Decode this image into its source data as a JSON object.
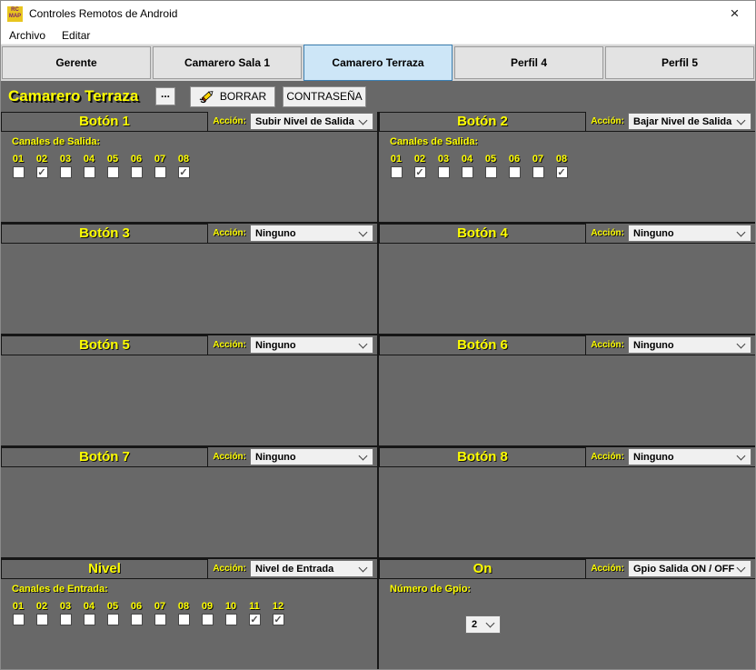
{
  "window": {
    "title": "Controles Remotos de Android",
    "icon_line1": "RC",
    "icon_line2": "MAP",
    "close_glyph": "×"
  },
  "menubar": {
    "items": [
      {
        "label": "Archivo"
      },
      {
        "label": "Editar"
      }
    ]
  },
  "tabs": [
    {
      "label": "Gerente",
      "selected": false
    },
    {
      "label": "Camarero Sala 1",
      "selected": false
    },
    {
      "label": "Camarero Terraza",
      "selected": true
    },
    {
      "label": "Perfil 4",
      "selected": false
    },
    {
      "label": "Perfil 5",
      "selected": false
    }
  ],
  "toolbar": {
    "profile_name": "Camarero Terraza",
    "more_button": "...",
    "delete_button": "BORRAR",
    "password_button": "CONTRASEÑA"
  },
  "labels": {
    "action": "Acción:"
  },
  "panels": [
    {
      "title": "Botón 1",
      "action": "Subir Nivel de Salida",
      "channels_label": "Canales de Salida:",
      "channels": [
        {
          "label": "01",
          "checked": false
        },
        {
          "label": "02",
          "checked": true
        },
        {
          "label": "03",
          "checked": false
        },
        {
          "label": "04",
          "checked": false
        },
        {
          "label": "05",
          "checked": false
        },
        {
          "label": "06",
          "checked": false
        },
        {
          "label": "07",
          "checked": false
        },
        {
          "label": "08",
          "checked": true
        }
      ]
    },
    {
      "title": "Botón 2",
      "action": "Bajar Nivel de Salida",
      "channels_label": "Canales de Salida:",
      "channels": [
        {
          "label": "01",
          "checked": false
        },
        {
          "label": "02",
          "checked": true
        },
        {
          "label": "03",
          "checked": false
        },
        {
          "label": "04",
          "checked": false
        },
        {
          "label": "05",
          "checked": false
        },
        {
          "label": "06",
          "checked": false
        },
        {
          "label": "07",
          "checked": false
        },
        {
          "label": "08",
          "checked": true
        }
      ]
    },
    {
      "title": "Botón 3",
      "action": "Ninguno"
    },
    {
      "title": "Botón 4",
      "action": "Ninguno"
    },
    {
      "title": "Botón 5",
      "action": "Ninguno"
    },
    {
      "title": "Botón 6",
      "action": "Ninguno"
    },
    {
      "title": "Botón 7",
      "action": "Ninguno"
    },
    {
      "title": "Botón 8",
      "action": "Ninguno"
    },
    {
      "title": "Nivel",
      "action": "Nivel de Entrada",
      "channels_label": "Canales de Entrada:",
      "channels": [
        {
          "label": "01",
          "checked": false
        },
        {
          "label": "02",
          "checked": false
        },
        {
          "label": "03",
          "checked": false
        },
        {
          "label": "04",
          "checked": false
        },
        {
          "label": "05",
          "checked": false
        },
        {
          "label": "06",
          "checked": false
        },
        {
          "label": "07",
          "checked": false
        },
        {
          "label": "08",
          "checked": false
        },
        {
          "label": "09",
          "checked": false
        },
        {
          "label": "10",
          "checked": false
        },
        {
          "label": "11",
          "checked": true
        },
        {
          "label": "12",
          "checked": true
        }
      ]
    },
    {
      "title": "On",
      "action": "Gpio Salida ON / OFF",
      "gpio_label": "Número de Gpio:",
      "gpio_value": "2"
    }
  ],
  "colors": {
    "accent_yellow": "#ffff00",
    "panel_gray": "#686868",
    "selected_tab_bg": "#cde6f7",
    "selected_tab_border": "#3c7fb1",
    "divider_black": "#161616"
  }
}
